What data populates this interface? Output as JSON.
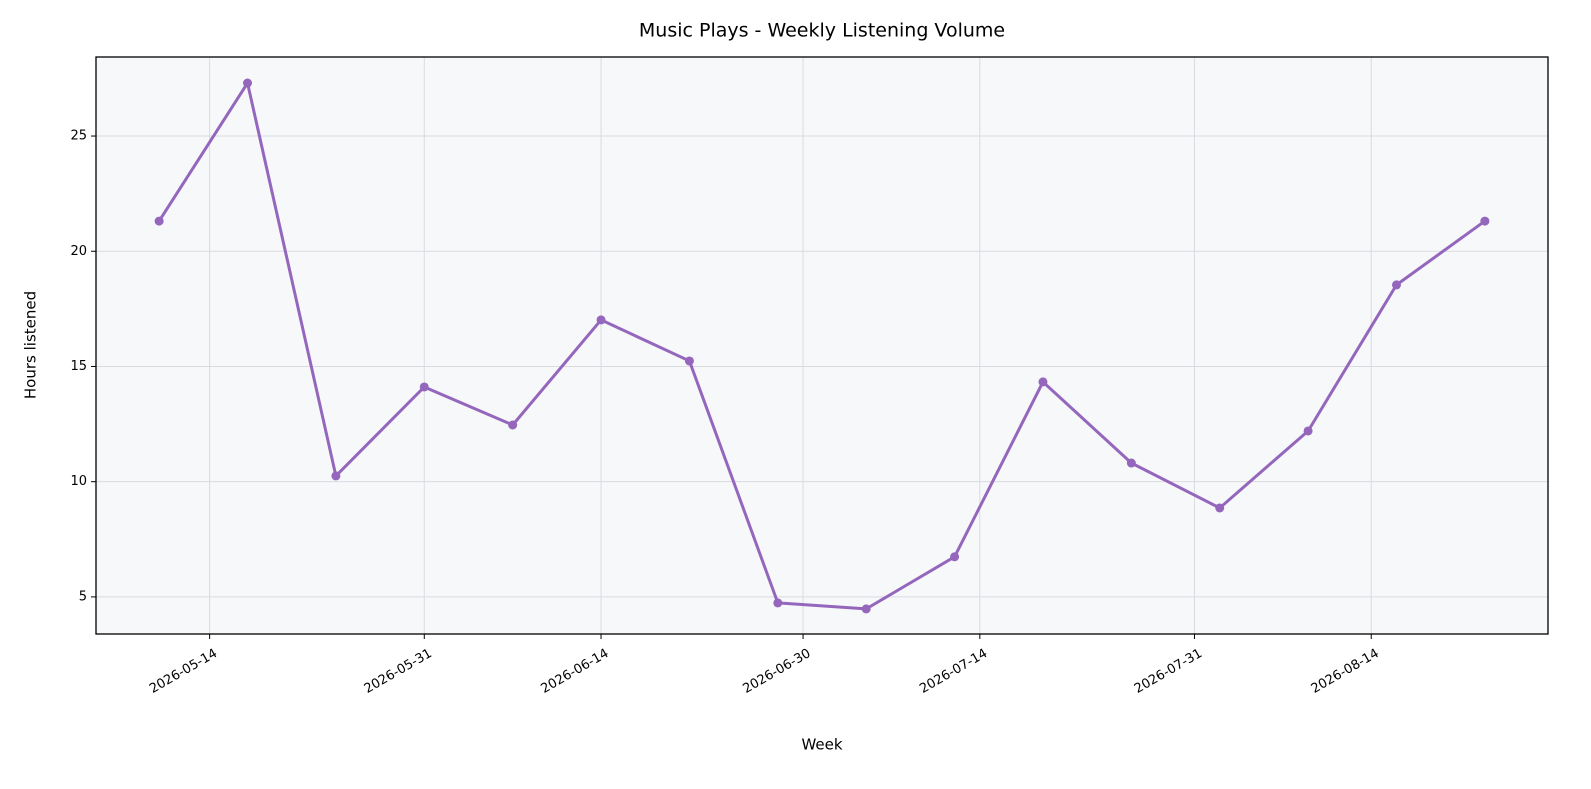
{
  "chart_data": {
    "type": "line",
    "title": "Music Plays - Weekly Listening Volume",
    "x_label": "Week",
    "y_label": "Hours listened",
    "x": [
      "2026-05-10",
      "2026-05-17",
      "2026-05-24",
      "2026-05-31",
      "2026-06-07",
      "2026-06-14",
      "2026-06-21",
      "2026-06-28",
      "2026-07-05",
      "2026-07-12",
      "2026-07-19",
      "2026-07-26",
      "2026-08-02",
      "2026-08-09",
      "2026-08-16",
      "2026-08-23"
    ],
    "series": [
      {
        "name": "Hours listened",
        "color": "#9467bd",
        "values": [
          21.31,
          27.3,
          10.25,
          14.11,
          12.46,
          17.02,
          15.24,
          4.74,
          4.48,
          6.74,
          14.33,
          10.81,
          8.86,
          12.2,
          18.54,
          21.31
        ]
      }
    ],
    "xlim": [
      "2026-05-05",
      "2026-08-28"
    ],
    "xticks": [
      "2026-05-14",
      "2026-05-31",
      "2026-06-14",
      "2026-06-30",
      "2026-07-14",
      "2026-07-31",
      "2026-08-14"
    ],
    "ylim": [
      3.39,
      28.43
    ],
    "yticks": [
      5,
      10,
      15,
      20,
      25
    ],
    "grid": true
  }
}
